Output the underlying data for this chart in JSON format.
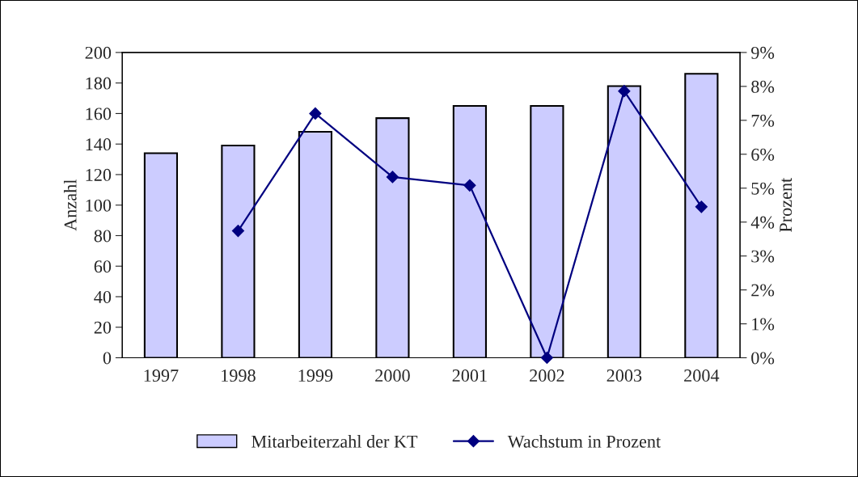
{
  "chart_data": {
    "type": "bar",
    "ylabel": "Anzahl",
    "y2label": "Prozent",
    "categories": [
      "1997",
      "1998",
      "1999",
      "2000",
      "2001",
      "2002",
      "2003",
      "2004"
    ],
    "series": [
      {
        "name": "Mitarbeiterzahl der KT",
        "color": "#ccccff",
        "values": [
          134,
          139,
          148,
          157,
          165,
          165,
          178,
          186
        ]
      },
      {
        "name": "Wachstum in Prozent",
        "type": "line",
        "axis": "y2",
        "color": "#000080",
        "marker": "diamond",
        "line_style": "solid",
        "values": [
          null,
          3.74,
          7.2,
          5.33,
          5.08,
          0,
          7.86,
          4.45
        ]
      }
    ],
    "ylim": [
      0,
      200
    ],
    "yticks": [
      0,
      20,
      40,
      60,
      80,
      100,
      120,
      140,
      160,
      180,
      200
    ],
    "y2lim": [
      0,
      9
    ],
    "y2ticks": [
      {
        "value": 0,
        "label": "0%"
      },
      {
        "value": 1,
        "label": "1%"
      },
      {
        "value": 2,
        "label": "2%"
      },
      {
        "value": 3,
        "label": "3%"
      },
      {
        "value": 4,
        "label": "4%"
      },
      {
        "value": 5,
        "label": "5%"
      },
      {
        "value": 6,
        "label": "6%"
      },
      {
        "value": 7,
        "label": "7%"
      },
      {
        "value": 8,
        "label": "8%"
      },
      {
        "value": 9,
        "label": "9%"
      }
    ],
    "grid": false,
    "legend": "bottom"
  }
}
